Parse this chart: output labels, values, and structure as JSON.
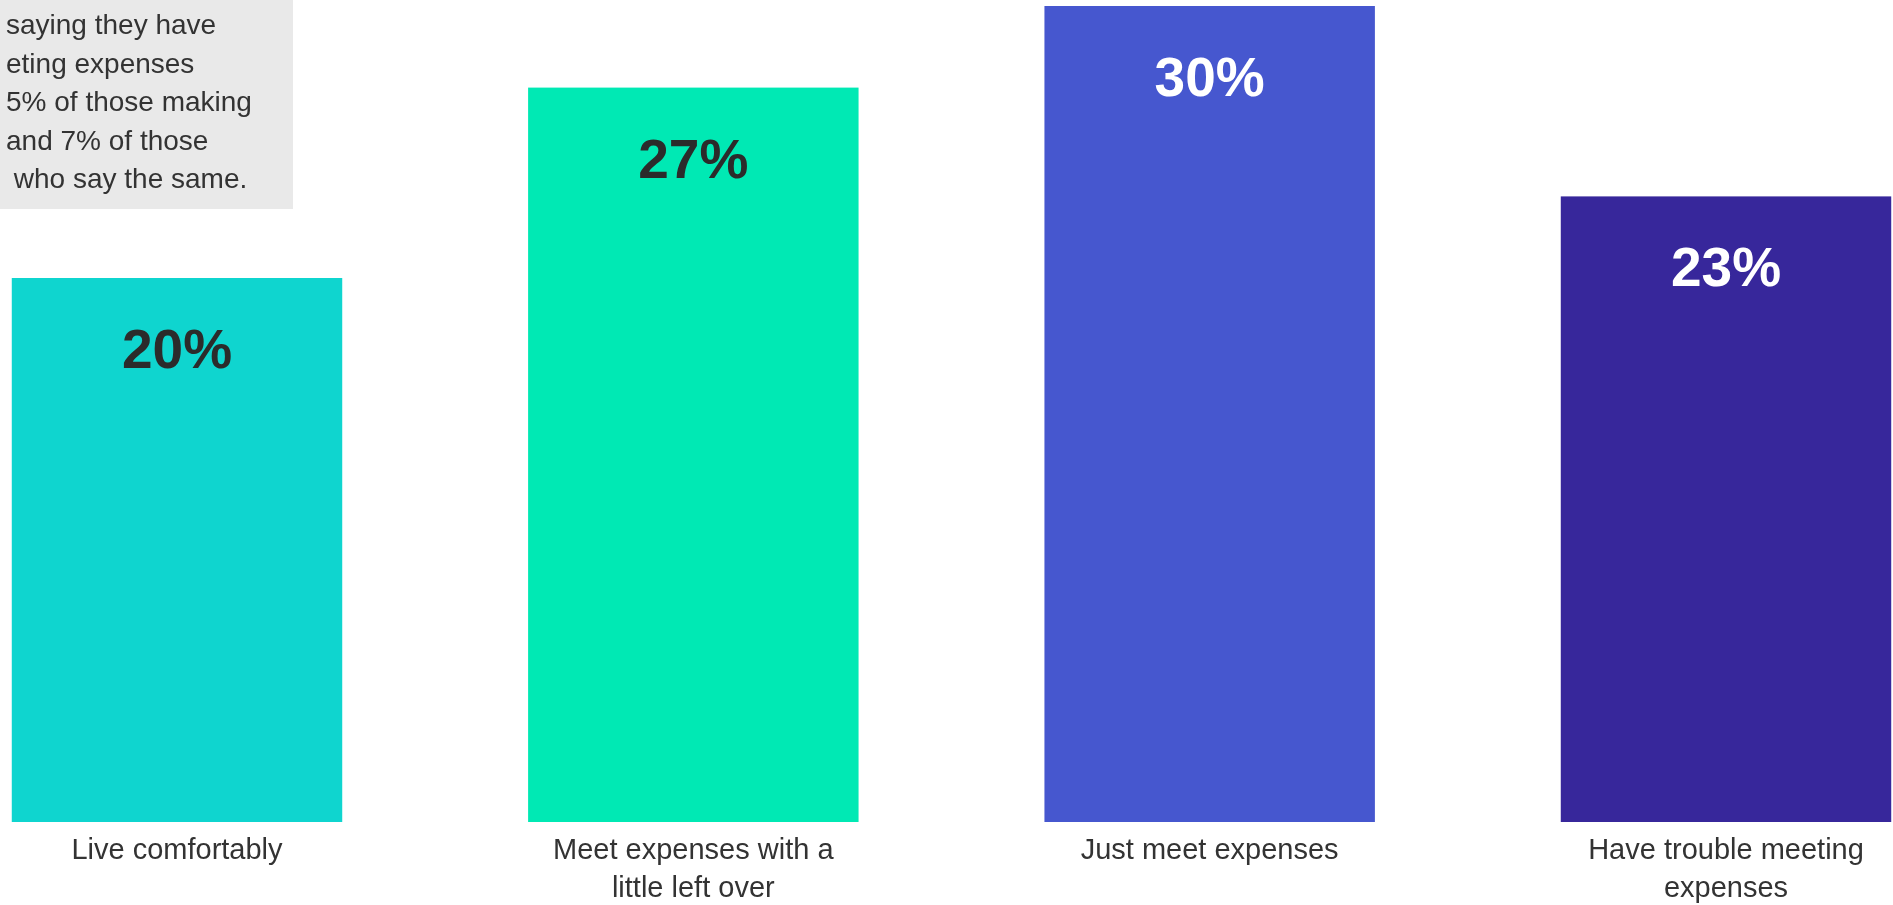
{
  "chart_data": {
    "type": "bar",
    "categories": [
      "Live comfortably",
      "Meet expenses with a little left over",
      "Just meet expenses",
      "Have trouble meeting expenses"
    ],
    "values": [
      20,
      27,
      30,
      23
    ],
    "colors": [
      "#0fd5cf",
      "#00e9b4",
      "#4657cf",
      "#37279b"
    ],
    "data_labels": true,
    "value_labels": [
      "20%",
      "27%",
      "30%",
      "23%"
    ],
    "annotations": [
      "saying they have\neting expenses\n5% of those making\nand 7% of those\n who say the same."
    ]
  }
}
